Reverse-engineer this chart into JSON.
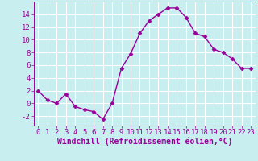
{
  "x": [
    0,
    1,
    2,
    3,
    4,
    5,
    6,
    7,
    8,
    9,
    10,
    11,
    12,
    13,
    14,
    15,
    16,
    17,
    18,
    19,
    20,
    21,
    22,
    23
  ],
  "y": [
    2,
    0.5,
    0,
    1.5,
    -0.5,
    -1,
    -1.3,
    -2.5,
    0,
    5.5,
    7.8,
    11,
    13,
    14,
    15,
    15,
    13.5,
    11,
    10.5,
    8.5,
    8,
    7,
    5.5,
    5.5
  ],
  "line_color": "#990099",
  "marker": "D",
  "markersize": 2.5,
  "linewidth": 1.0,
  "xlabel": "Windchill (Refroidissement éolien,°C)",
  "xlabel_fontsize": 7,
  "bg_color": "#c8eef0",
  "grid_color": "#ffffff",
  "ylim": [
    -3.5,
    16
  ],
  "xlim": [
    -0.5,
    23.5
  ],
  "yticks": [
    -2,
    0,
    2,
    4,
    6,
    8,
    10,
    12,
    14
  ],
  "xticks": [
    0,
    1,
    2,
    3,
    4,
    5,
    6,
    7,
    8,
    9,
    10,
    11,
    12,
    13,
    14,
    15,
    16,
    17,
    18,
    19,
    20,
    21,
    22,
    23
  ],
  "tick_fontsize": 6.5,
  "tick_color": "#990099",
  "spine_color": "#990099"
}
